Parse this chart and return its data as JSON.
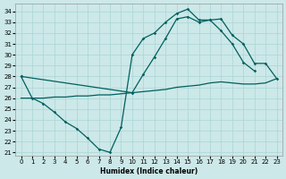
{
  "xlabel": "Humidex (Indice chaleur)",
  "bg_color": "#cce8e8",
  "grid_color": "#aad4d4",
  "line_color": "#005f5f",
  "xlim": [
    -0.5,
    23.5
  ],
  "ylim": [
    20.7,
    34.7
  ],
  "xticks": [
    0,
    1,
    2,
    3,
    4,
    5,
    6,
    7,
    8,
    9,
    10,
    11,
    12,
    13,
    14,
    15,
    16,
    17,
    18,
    19,
    20,
    21,
    22,
    23
  ],
  "yticks": [
    21,
    22,
    23,
    24,
    25,
    26,
    27,
    28,
    29,
    30,
    31,
    32,
    33,
    34
  ],
  "line_zigzag_x": [
    0,
    1,
    2,
    3,
    4,
    5,
    6,
    7,
    8,
    9,
    10,
    11,
    12,
    13,
    14,
    15,
    16,
    17,
    18,
    19,
    20,
    21
  ],
  "line_zigzag_y": [
    28,
    26,
    25.5,
    24.7,
    23.8,
    23.2,
    22.3,
    21.3,
    21.0,
    23.3,
    30.0,
    31.5,
    32.0,
    33.0,
    33.8,
    34.2,
    33.2,
    33.2,
    32.2,
    31.0,
    29.3,
    28.5
  ],
  "line_diag_x": [
    0,
    1,
    2,
    3,
    4,
    5,
    6,
    7,
    8,
    9,
    10,
    11,
    12,
    13,
    14,
    15,
    16,
    17,
    18,
    19,
    20,
    21,
    22,
    23
  ],
  "line_diag_y": [
    26,
    26,
    26,
    26.1,
    26.1,
    26.2,
    26.2,
    26.3,
    26.3,
    26.4,
    26.5,
    26.6,
    26.7,
    26.8,
    27.0,
    27.1,
    27.2,
    27.4,
    27.5,
    27.4,
    27.3,
    27.3,
    27.4,
    27.8
  ],
  "line_upper_x": [
    0,
    10,
    11,
    12,
    13,
    14,
    15,
    16,
    17,
    18,
    19,
    20,
    21,
    22,
    23
  ],
  "line_upper_y": [
    28,
    26.5,
    28.2,
    29.8,
    31.5,
    33.3,
    33.5,
    33.0,
    33.2,
    33.3,
    31.8,
    31.0,
    29.2,
    29.2,
    27.8
  ]
}
